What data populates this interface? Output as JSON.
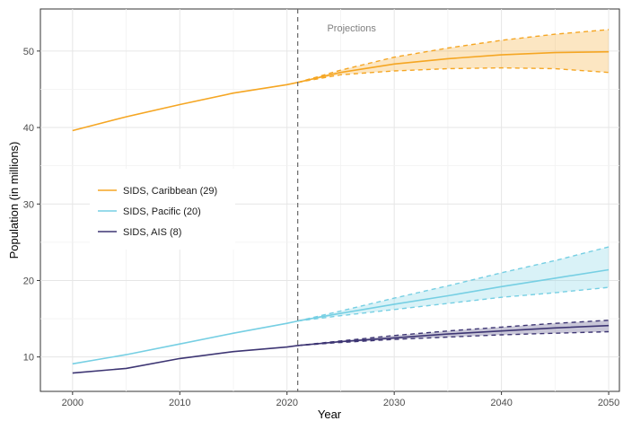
{
  "chart_data": {
    "type": "line",
    "xlabel": "Year",
    "ylabel": "Population (in millions)",
    "xlim": [
      1997,
      2051
    ],
    "ylim": [
      5.5,
      55.5
    ],
    "x_ticks": [
      2000,
      2010,
      2020,
      2030,
      2040,
      2050
    ],
    "y_ticks": [
      10,
      20,
      30,
      40,
      50
    ],
    "grid": true,
    "legend_position": "left",
    "annotations": [
      {
        "text": "Projections",
        "x": 2021
      }
    ],
    "projection_start": 2021,
    "series": [
      {
        "name": "SIDS, Caribbean (29)",
        "color": "#f5a623",
        "historical": {
          "x": [
            2000,
            2005,
            2010,
            2015,
            2020,
            2021
          ],
          "y": [
            39.6,
            41.4,
            43.0,
            44.5,
            45.6,
            45.9
          ]
        },
        "projection": {
          "x": [
            2021,
            2025,
            2030,
            2035,
            2040,
            2045,
            2050
          ],
          "median": [
            45.9,
            47.2,
            48.3,
            49.0,
            49.5,
            49.8,
            49.9
          ],
          "upper": [
            45.9,
            47.5,
            49.2,
            50.4,
            51.4,
            52.2,
            52.8
          ],
          "lower": [
            45.9,
            46.9,
            47.4,
            47.7,
            47.8,
            47.7,
            47.2
          ]
        }
      },
      {
        "name": "SIDS, Pacific (20)",
        "color": "#76cfe3",
        "historical": {
          "x": [
            2000,
            2005,
            2010,
            2015,
            2020,
            2021
          ],
          "y": [
            9.1,
            10.3,
            11.7,
            13.1,
            14.4,
            14.7
          ]
        },
        "projection": {
          "x": [
            2021,
            2025,
            2030,
            2035,
            2040,
            2045,
            2050
          ],
          "median": [
            14.7,
            15.7,
            16.9,
            18.0,
            19.2,
            20.3,
            21.4
          ],
          "upper": [
            14.7,
            16.0,
            17.7,
            19.3,
            21.0,
            22.6,
            24.4
          ],
          "lower": [
            14.7,
            15.4,
            16.2,
            17.0,
            17.8,
            18.4,
            19.1
          ]
        }
      },
      {
        "name": "SIDS, AIS (8)",
        "color": "#3d3573",
        "historical": {
          "x": [
            2000,
            2005,
            2010,
            2015,
            2020,
            2021
          ],
          "y": [
            7.9,
            8.5,
            9.8,
            10.7,
            11.3,
            11.5
          ]
        },
        "projection": {
          "x": [
            2021,
            2025,
            2030,
            2035,
            2040,
            2045,
            2050
          ],
          "median": [
            11.5,
            12.0,
            12.5,
            13.0,
            13.4,
            13.8,
            14.1
          ],
          "upper": [
            11.5,
            12.1,
            12.8,
            13.4,
            13.9,
            14.4,
            14.8
          ],
          "lower": [
            11.5,
            11.9,
            12.3,
            12.6,
            12.9,
            13.1,
            13.3
          ]
        }
      }
    ]
  }
}
